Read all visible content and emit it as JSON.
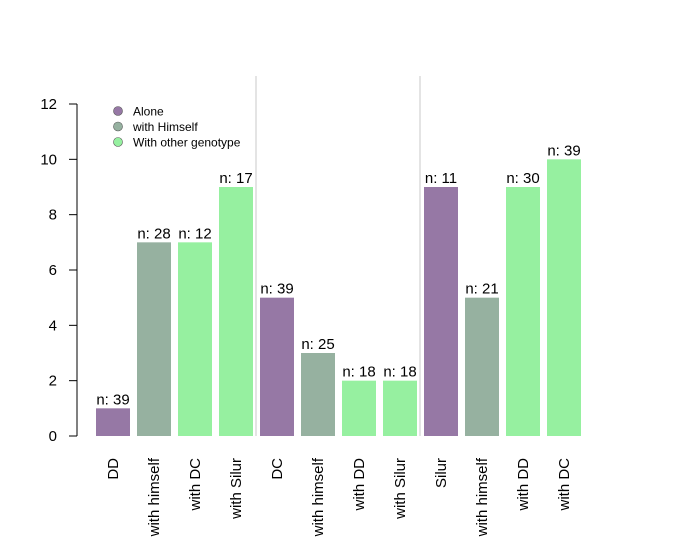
{
  "chart_data": {
    "type": "bar",
    "ylim": [
      0,
      12
    ],
    "yticks": [
      0,
      2,
      4,
      6,
      8,
      10,
      12
    ],
    "groups": [
      {
        "bars": [
          {
            "category": "DD",
            "value": 1,
            "label": "n: 39",
            "series": "Alone"
          },
          {
            "category": "with himself",
            "value": 7,
            "label": "n: 28",
            "series": "with Himself"
          },
          {
            "category": "with DC",
            "value": 7,
            "label": "n: 12",
            "series": "With other genotype"
          },
          {
            "category": "with Silur",
            "value": 9,
            "label": "n: 17",
            "series": "With other genotype"
          }
        ]
      },
      {
        "bars": [
          {
            "category": "DC",
            "value": 5,
            "label": "n: 39",
            "series": "Alone"
          },
          {
            "category": "with himself",
            "value": 3,
            "label": "n: 25",
            "series": "with Himself"
          },
          {
            "category": "with DD",
            "value": 2,
            "label": "n: 18",
            "series": "With other genotype"
          },
          {
            "category": "with Silur",
            "value": 2,
            "label": "n: 18",
            "series": "With other genotype"
          }
        ]
      },
      {
        "bars": [
          {
            "category": "Silur",
            "value": 9,
            "label": "n: 11",
            "series": "Alone"
          },
          {
            "category": "with himself",
            "value": 5,
            "label": "n: 21",
            "series": "with Himself"
          },
          {
            "category": "with DD",
            "value": 9,
            "label": "n: 30",
            "series": "With other genotype"
          },
          {
            "category": "with DC",
            "value": 10,
            "label": "n: 39",
            "series": "With other genotype"
          }
        ]
      }
    ],
    "legend": {
      "position": "top-left",
      "entries": [
        {
          "name": "Alone",
          "color": "#9678a5"
        },
        {
          "name": "with Himself",
          "color": "#96b1a0"
        },
        {
          "name": "With other genotype",
          "color": "#96f0a0"
        }
      ]
    },
    "grid": false,
    "group_separators": true
  }
}
